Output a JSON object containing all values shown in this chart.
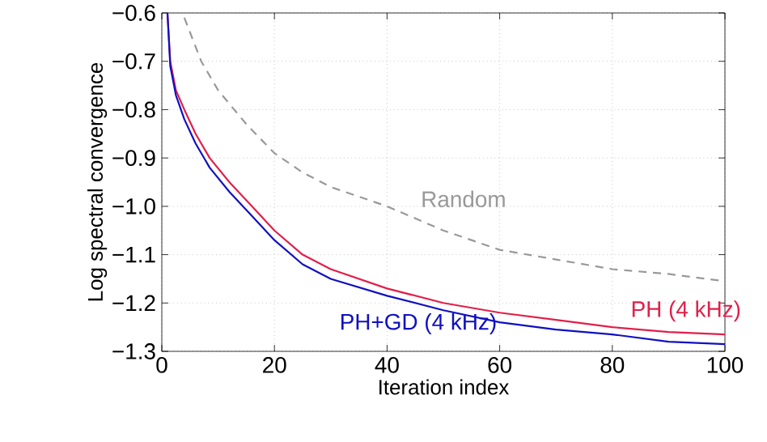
{
  "chart_data": {
    "type": "line",
    "xlabel": "Iteration index",
    "ylabel": "Log spectral convergence",
    "xlim": [
      0,
      100
    ],
    "ylim": [
      -1.3,
      -0.6
    ],
    "xticks": [
      0,
      20,
      40,
      60,
      80,
      100
    ],
    "yticks": [
      {
        "value": -1.3,
        "label": "−1.3"
      },
      {
        "value": -1.2,
        "label": "−1.2"
      },
      {
        "value": -1.1,
        "label": "−1.1"
      },
      {
        "value": -1.0,
        "label": "−1.0"
      },
      {
        "value": -0.9,
        "label": "−0.9"
      },
      {
        "value": -0.8,
        "label": "−0.8"
      },
      {
        "value": -0.7,
        "label": "−0.7"
      },
      {
        "value": -0.6,
        "label": "−0.6"
      }
    ],
    "grid": true,
    "series": [
      {
        "name": "Random",
        "color": "#999999",
        "line_style": "dashed",
        "x": [
          4,
          7,
          10,
          15,
          20,
          25,
          30,
          40,
          50,
          60,
          70,
          80,
          90,
          100
        ],
        "values": [
          -0.61,
          -0.7,
          -0.76,
          -0.83,
          -0.89,
          -0.93,
          -0.96,
          -1.0,
          -1.05,
          -1.09,
          -1.11,
          -1.13,
          -1.14,
          -1.155
        ]
      },
      {
        "name": "PH (4 kHz)",
        "color": "#e0204a",
        "line_style": "solid",
        "x": [
          1,
          1.5,
          2.5,
          4,
          6,
          8.5,
          12,
          16,
          20,
          25,
          30,
          40,
          50,
          60,
          70,
          80,
          90,
          100
        ],
        "values": [
          -0.6,
          -0.7,
          -0.76,
          -0.8,
          -0.85,
          -0.9,
          -0.95,
          -1.0,
          -1.05,
          -1.1,
          -1.13,
          -1.17,
          -1.2,
          -1.22,
          -1.235,
          -1.25,
          -1.26,
          -1.265
        ]
      },
      {
        "name": "PH+GD (4 kHz)",
        "color": "#1010c0",
        "line_style": "solid",
        "x": [
          1,
          1.5,
          2.5,
          4,
          6,
          8.5,
          12,
          16,
          20,
          25,
          30,
          40,
          50,
          60,
          70,
          80,
          90,
          100
        ],
        "values": [
          -0.6,
          -0.71,
          -0.77,
          -0.82,
          -0.87,
          -0.92,
          -0.97,
          -1.02,
          -1.07,
          -1.12,
          -1.15,
          -1.185,
          -1.215,
          -1.24,
          -1.255,
          -1.265,
          -1.28,
          -1.285
        ]
      }
    ]
  }
}
